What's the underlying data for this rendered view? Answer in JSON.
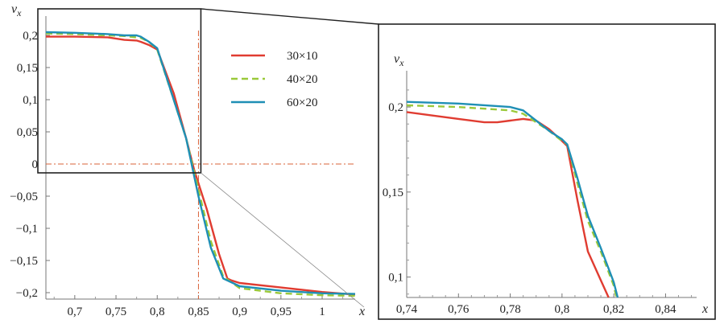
{
  "chart_data": [
    {
      "type": "line",
      "title": "",
      "xlabel": "x",
      "ylabel": "v_x",
      "xlim": [
        0.665,
        1.04
      ],
      "ylim": [
        -0.21,
        0.23
      ],
      "x_ticks": [
        0.7,
        0.75,
        0.8,
        0.85,
        0.9,
        0.95,
        1.0
      ],
      "x_tick_labels": [
        "0,7",
        "0,75",
        "0,8",
        "0,85",
        "0,9",
        "0,95",
        "1"
      ],
      "y_ticks": [
        0.2,
        0.15,
        0.1,
        0.05,
        0,
        -0.05,
        -0.1,
        -0.15,
        -0.2
      ],
      "y_tick_labels": [
        "0,2",
        "0,15",
        "0,1",
        "0,05",
        "0",
        "−0,05",
        "−0,1",
        "−0,15",
        "−0,2"
      ],
      "reference_lines": {
        "horizontal_y": 0,
        "vertical_x": 0.85
      },
      "zoom_box": {
        "x": [
          0.665,
          0.85
        ],
        "y": [
          -0.01,
          0.23
        ]
      },
      "legend": {
        "position": "top-center",
        "entries": [
          "30×10",
          "40×20",
          "60×20"
        ]
      },
      "series": [
        {
          "name": "30×10",
          "color": "#e03c31",
          "style": "solid",
          "x": [
            0.665,
            0.7,
            0.74,
            0.76,
            0.775,
            0.78,
            0.79,
            0.8,
            0.82,
            0.835,
            0.845,
            0.86,
            0.875,
            0.885,
            0.89,
            0.9,
            0.95,
            1.0,
            1.04
          ],
          "values": [
            0.198,
            0.198,
            0.197,
            0.193,
            0.192,
            0.19,
            0.185,
            0.178,
            0.11,
            0.04,
            -0.01,
            -0.07,
            -0.14,
            -0.178,
            -0.181,
            -0.185,
            -0.192,
            -0.199,
            -0.203
          ]
        },
        {
          "name": "40×20",
          "color": "#9ac93a",
          "style": "dashed",
          "x": [
            0.665,
            0.7,
            0.74,
            0.76,
            0.78,
            0.79,
            0.8,
            0.82,
            0.835,
            0.85,
            0.865,
            0.88,
            0.9,
            0.95,
            1.0,
            1.04
          ],
          "values": [
            0.203,
            0.202,
            0.2,
            0.199,
            0.196,
            0.19,
            0.178,
            0.1,
            0.04,
            -0.04,
            -0.12,
            -0.175,
            -0.193,
            -0.201,
            -0.204,
            -0.205
          ]
        },
        {
          "name": "60×20",
          "color": "#1f8fb5",
          "style": "solid",
          "x": [
            0.665,
            0.7,
            0.74,
            0.76,
            0.775,
            0.78,
            0.79,
            0.8,
            0.82,
            0.835,
            0.85,
            0.865,
            0.88,
            0.9,
            0.95,
            1.0,
            1.04
          ],
          "values": [
            0.205,
            0.204,
            0.202,
            0.2,
            0.2,
            0.198,
            0.19,
            0.18,
            0.1,
            0.04,
            -0.05,
            -0.13,
            -0.178,
            -0.19,
            -0.197,
            -0.201,
            -0.202
          ]
        }
      ]
    },
    {
      "type": "line",
      "title": "",
      "xlabel": "x",
      "ylabel": "v_x",
      "xlim": [
        0.74,
        0.852
      ],
      "ylim": [
        0.088,
        0.218
      ],
      "x_ticks": [
        0.74,
        0.76,
        0.78,
        0.8,
        0.82,
        0.84
      ],
      "x_tick_labels": [
        "0,74",
        "0,76",
        "0,78",
        "0,8",
        "0,82",
        "0,84"
      ],
      "y_ticks": [
        0.2,
        0.15,
        0.1
      ],
      "y_tick_labels": [
        "0,2",
        "0,15",
        "0,1"
      ],
      "series": [
        {
          "name": "30×10",
          "color": "#e03c31",
          "style": "solid",
          "x": [
            0.74,
            0.75,
            0.76,
            0.77,
            0.775,
            0.78,
            0.785,
            0.79,
            0.795,
            0.8,
            0.802,
            0.806,
            0.81,
            0.815,
            0.818
          ],
          "values": [
            0.197,
            0.195,
            0.193,
            0.191,
            0.191,
            0.192,
            0.193,
            0.192,
            0.187,
            0.18,
            0.177,
            0.145,
            0.115,
            0.098,
            0.088
          ]
        },
        {
          "name": "40×20",
          "color": "#9ac93a",
          "style": "dashed",
          "x": [
            0.74,
            0.76,
            0.78,
            0.785,
            0.79,
            0.795,
            0.8,
            0.802,
            0.806,
            0.81,
            0.815,
            0.82,
            0.821
          ],
          "values": [
            0.201,
            0.2,
            0.198,
            0.196,
            0.191,
            0.186,
            0.18,
            0.178,
            0.155,
            0.133,
            0.115,
            0.095,
            0.088
          ]
        },
        {
          "name": "60×20",
          "color": "#1f8fb5",
          "style": "solid",
          "x": [
            0.74,
            0.76,
            0.78,
            0.785,
            0.79,
            0.795,
            0.8,
            0.802,
            0.806,
            0.81,
            0.815,
            0.82,
            0.8215
          ],
          "values": [
            0.203,
            0.202,
            0.2,
            0.198,
            0.192,
            0.186,
            0.181,
            0.178,
            0.158,
            0.136,
            0.117,
            0.097,
            0.088
          ]
        }
      ]
    }
  ]
}
